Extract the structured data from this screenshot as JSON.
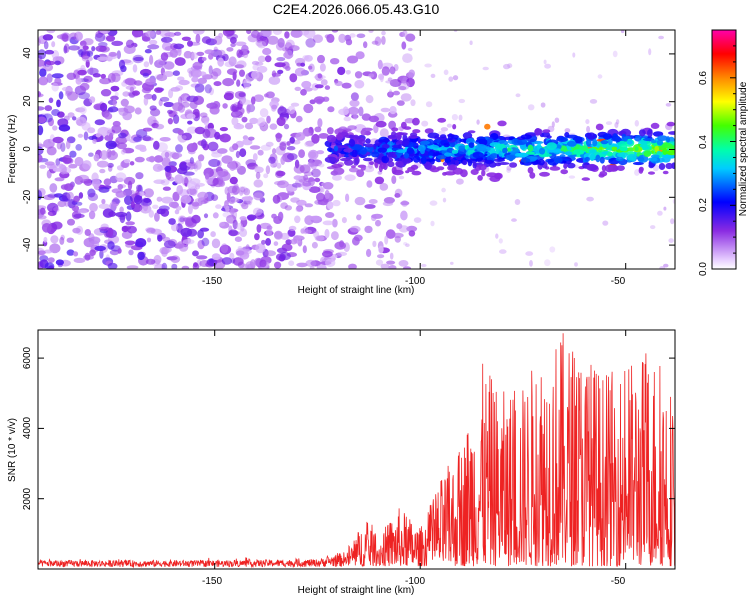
{
  "figure": {
    "title": "C2E4.2026.066.05.43.G10"
  },
  "chart_data": [
    {
      "type": "heatmap",
      "title": "",
      "xlabel": "Height of straight line (km)",
      "ylabel": "Frequency (Hz)",
      "xlim": [
        -193,
        -38
      ],
      "ylim": [
        -50,
        50
      ],
      "xticks": [
        -150,
        -100,
        -50
      ],
      "xtick_labels": [
        "-150",
        "-100",
        "-50"
      ],
      "yticks": [
        -40,
        -20,
        0,
        20,
        40
      ],
      "ytick_labels": [
        "-40",
        "-20",
        "0",
        "20",
        "40"
      ],
      "colorbar": {
        "label": "Normalized spectral amplitude",
        "range": [
          0.0,
          0.75
        ],
        "ticks": [
          0.0,
          0.2,
          0.4,
          0.6
        ],
        "tick_labels": [
          "0.0",
          "0.2",
          "0.4",
          "0.6"
        ]
      },
      "features": {
        "signal_band_center_hz": 0,
        "signal_band_width_hz": 10,
        "signal_start_km": -122,
        "noise_dropoff_km": -110
      }
    },
    {
      "type": "line",
      "title": "",
      "xlabel": "Height of straight line (km)",
      "ylabel": "SNR (10 * v/v)",
      "xlim": [
        -193,
        -38
      ],
      "ylim": [
        0,
        6800
      ],
      "xticks": [
        -150,
        -100,
        -50
      ],
      "xtick_labels": [
        "-150",
        "-100",
        "-50"
      ],
      "yticks": [
        2000,
        4000,
        6000
      ],
      "ytick_labels": [
        "2000",
        "4000",
        "6000"
      ],
      "series": [
        {
          "name": "SNR",
          "color": "#ee2222",
          "envelope_x": [
            -193,
            -150,
            -125,
            -118,
            -113,
            -110,
            -105,
            -100,
            -95,
            -90,
            -85,
            -80,
            -75,
            -70,
            -65,
            -60,
            -55,
            -50,
            -45,
            -40,
            -38
          ],
          "envelope_y": [
            250,
            250,
            280,
            500,
            1400,
            900,
            1700,
            1100,
            2500,
            3500,
            5800,
            5000,
            5200,
            6500,
            6700,
            6200,
            5500,
            5800,
            6200,
            6000,
            4500
          ]
        }
      ]
    }
  ]
}
